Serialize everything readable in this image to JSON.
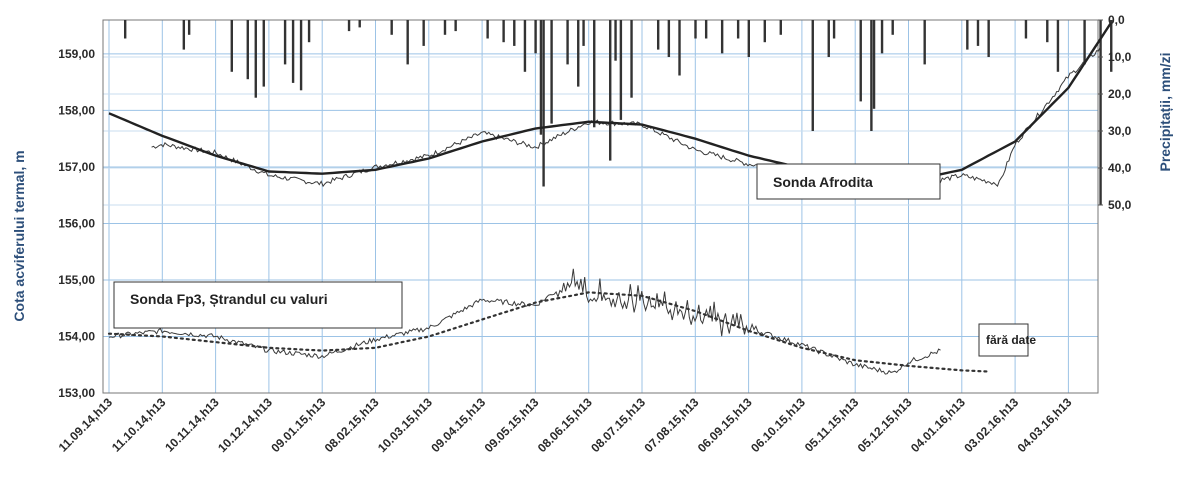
{
  "chart_data": {
    "type": "line",
    "x_categories": [
      "11.09.14,h13",
      "11.10.14,h13",
      "10.11.14,h13",
      "10.12.14,h13",
      "09.01.15,h13",
      "08.02.15,h13",
      "10.03.15,h13",
      "09.04.15,h13",
      "09.05.15,h13",
      "08.06.15,h13",
      "08.07.15,h13",
      "07.08.15,h13",
      "06.09.15,h13",
      "06.10.15,h13",
      "05.11.15,h13",
      "05.12.15,h13",
      "04.01.16,h13",
      "03.02.16,h13",
      "04.03.16,h13"
    ],
    "y_left": {
      "label": "Cota acviferului termal,  m",
      "ticks": [
        "153,00",
        "154,00",
        "155,00",
        "156,00",
        "157,00",
        "158,00",
        "159,00"
      ],
      "range": [
        153,
        159.6
      ]
    },
    "y_right": {
      "label": "Precipitații, mm/zi",
      "ticks": [
        "0,0",
        "10,0",
        "20,0",
        "30,0",
        "40,0",
        "50,0"
      ],
      "range": [
        0,
        50
      ],
      "inverted": true
    },
    "grid": true,
    "annotations": {
      "afrodita": "Sonda Afrodita",
      "fp3": "Sonda Fp3, Ștrandul cu valuri",
      "no_data": "fără date"
    },
    "series": [
      {
        "name": "Sonda Afrodita",
        "style": "noisy-line",
        "x": [
          0.8,
          1,
          2,
          3,
          4,
          5,
          6,
          7,
          8,
          9,
          10,
          11,
          12,
          13,
          14,
          15,
          16,
          16.7,
          17,
          18,
          18.6
        ],
        "y": [
          157.35,
          157.4,
          157.25,
          156.85,
          156.7,
          157.0,
          157.2,
          157.6,
          157.35,
          157.8,
          157.75,
          157.3,
          157.05,
          156.95,
          156.75,
          156.65,
          156.85,
          156.7,
          157.4,
          158.6,
          159.1
        ]
      },
      {
        "name": "Sonda Afrodita trend",
        "style": "smooth-line",
        "x": [
          0,
          1,
          2,
          3,
          4,
          5,
          6,
          7,
          8,
          9,
          10,
          11,
          12,
          13,
          14,
          15,
          16,
          17,
          18,
          18.8
        ],
        "y": [
          157.95,
          157.55,
          157.2,
          156.92,
          156.88,
          156.95,
          157.15,
          157.45,
          157.68,
          157.8,
          157.75,
          157.5,
          157.2,
          156.98,
          156.8,
          156.75,
          156.95,
          157.45,
          158.4,
          159.55
        ]
      },
      {
        "name": "Sonda Fp3",
        "style": "noisy-line",
        "x": [
          0,
          1,
          2,
          3,
          4,
          5,
          6,
          7,
          8,
          8.6,
          9,
          10,
          11,
          12,
          13,
          14,
          14.7,
          15,
          15.6
        ],
        "y": [
          154.0,
          154.1,
          154.0,
          153.75,
          153.65,
          153.95,
          154.15,
          154.65,
          154.55,
          154.95,
          154.7,
          154.6,
          154.35,
          154.15,
          153.85,
          153.5,
          153.35,
          153.55,
          153.75
        ]
      },
      {
        "name": "Sonda Fp3 trend",
        "style": "dotted-line",
        "x": [
          0,
          1,
          2,
          3,
          4,
          5,
          6,
          7,
          8,
          9,
          10,
          11,
          12,
          13,
          14,
          15,
          16,
          16.5
        ],
        "y": [
          154.05,
          154.0,
          153.9,
          153.8,
          153.75,
          153.8,
          154.0,
          154.3,
          154.6,
          154.78,
          154.72,
          154.45,
          154.1,
          153.8,
          153.58,
          153.48,
          153.4,
          153.38
        ]
      }
    ],
    "precipitation_mm": {
      "x": [
        0.3,
        1.4,
        1.5,
        2.3,
        2.6,
        2.75,
        2.9,
        3.3,
        3.45,
        3.6,
        3.75,
        4.5,
        4.7,
        5.3,
        5.6,
        5.9,
        6.3,
        6.5,
        7.1,
        7.4,
        7.6,
        7.8,
        8.0,
        8.1,
        8.15,
        8.3,
        8.6,
        8.8,
        8.9,
        9.1,
        9.4,
        9.5,
        9.6,
        9.8,
        10.3,
        10.5,
        10.7,
        11.0,
        11.2,
        11.5,
        11.8,
        12.0,
        12.3,
        12.6,
        13.2,
        13.5,
        13.6,
        14.1,
        14.3,
        14.35,
        14.5,
        14.7,
        15.3,
        16.1,
        16.3,
        16.5,
        17.2,
        17.6,
        17.8,
        18.3,
        18.6,
        18.8
      ],
      "values": [
        5,
        8,
        4,
        14,
        16,
        21,
        18,
        12,
        17,
        19,
        6,
        3,
        2,
        4,
        12,
        7,
        4,
        3,
        5,
        6,
        7,
        14,
        9,
        31,
        45,
        28,
        12,
        18,
        7,
        29,
        38,
        11,
        27,
        21,
        8,
        10,
        15,
        5,
        5,
        9,
        5,
        10,
        6,
        4,
        30,
        10,
        5,
        22,
        30,
        24,
        9,
        4,
        12,
        8,
        7,
        10,
        5,
        6,
        14,
        12,
        50,
        14
      ]
    }
  }
}
